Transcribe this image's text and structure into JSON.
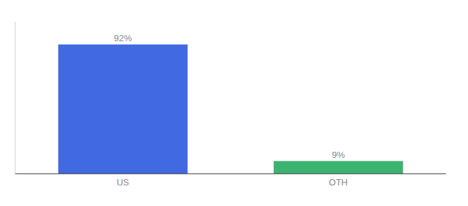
{
  "chart_data": {
    "type": "bar",
    "categories": [
      "US",
      "OTH"
    ],
    "values": [
      92,
      9
    ],
    "value_labels": [
      "92%",
      "9%"
    ],
    "colors": [
      "#4169E1",
      "#3CB371"
    ],
    "ylim": [
      0,
      108
    ],
    "data_labels": true,
    "tick_labels": "x"
  }
}
